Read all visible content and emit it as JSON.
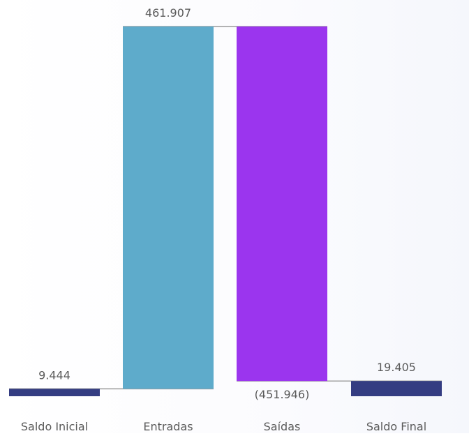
{
  "chart_data": {
    "type": "waterfall",
    "categories": [
      "Saldo Inicial",
      "Entradas",
      "Saídas",
      "Saldo Final"
    ],
    "values": [
      9444,
      461907,
      -451946,
      19405
    ],
    "kinds": [
      "total",
      "increase",
      "decrease",
      "total"
    ],
    "data_labels": [
      "9.444",
      "461.907",
      "(451.946)",
      "19.405"
    ],
    "colors": {
      "total": "#343d82",
      "increase": "#5eabcb",
      "decrease": "#9b35ee",
      "connector": "#9a9a9a",
      "label": "#5a5a5a"
    },
    "ylim": [
      0,
      471351
    ],
    "grid": false,
    "legend": "none"
  }
}
